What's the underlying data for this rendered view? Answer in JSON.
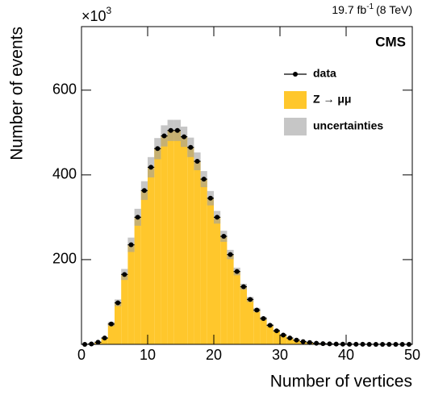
{
  "chart_data": {
    "type": "histogram",
    "experiment": "CMS",
    "lumi": "19.7 fb",
    "lumi_exponent": "-1",
    "energy": "(8 TeV)",
    "y_multiplier": "×10",
    "y_multiplier_exponent": "3",
    "x_label": "Number of vertices",
    "y_label": "Number of events",
    "bins": [
      0,
      1,
      2,
      3,
      4,
      5,
      6,
      7,
      8,
      9,
      10,
      11,
      12,
      13,
      14,
      15,
      16,
      17,
      18,
      19,
      20,
      21,
      22,
      23,
      24,
      25,
      26,
      27,
      28,
      29,
      30,
      31,
      32,
      33,
      34,
      35,
      36,
      37,
      38,
      39,
      40,
      41,
      42,
      43,
      44,
      45,
      46,
      47,
      48,
      49,
      50
    ],
    "series": [
      {
        "name": "data",
        "color": "#000000",
        "values": [
          0,
          1,
          5,
          15,
          48,
          98,
          165,
          235,
          300,
          363,
          418,
          462,
          492,
          505,
          505,
          490,
          465,
          432,
          390,
          345,
          300,
          255,
          212,
          172,
          136,
          106,
          81,
          61,
          45,
          32,
          22,
          15,
          10,
          6.5,
          4.2,
          2.7,
          1.7,
          1.1,
          0.7,
          0.45,
          0.3,
          0.2,
          0.13,
          0.09,
          0.06,
          0.04,
          0.03,
          0.02,
          0,
          0
        ]
      },
      {
        "name": "Z → μμ",
        "color": "#ffc72c",
        "values": [
          0,
          1,
          5,
          15,
          48,
          98,
          165,
          235,
          300,
          363,
          418,
          462,
          492,
          505,
          505,
          490,
          465,
          432,
          390,
          345,
          300,
          255,
          212,
          172,
          136,
          106,
          81,
          61,
          45,
          32,
          22,
          15,
          10,
          6.5,
          4.2,
          2.7,
          1.7,
          1.1,
          0.7,
          0.45,
          0.3,
          0.2,
          0.13,
          0.09,
          0.06,
          0.04,
          0.03,
          0.02,
          0,
          0
        ]
      },
      {
        "name": "uncertainties",
        "color": "#a0a0a0",
        "values": [
          0,
          0.1,
          0.5,
          1.5,
          5,
          8,
          13,
          17,
          20,
          22,
          24,
          25,
          25,
          25,
          25,
          24,
          23,
          21,
          19,
          17,
          15,
          13,
          11,
          9,
          7,
          6,
          5,
          4,
          3,
          2,
          1.5,
          1,
          0.7,
          0.5,
          0.3,
          0.2,
          0.1,
          0.1,
          0.05,
          0.05,
          0,
          0,
          0,
          0,
          0,
          0,
          0,
          0,
          0,
          0
        ]
      }
    ],
    "xlim": [
      0,
      50
    ],
    "xticks": [
      0,
      10,
      20,
      30,
      40,
      50
    ],
    "ylim": [
      0,
      750
    ],
    "yticks": [
      200,
      400,
      600
    ]
  }
}
